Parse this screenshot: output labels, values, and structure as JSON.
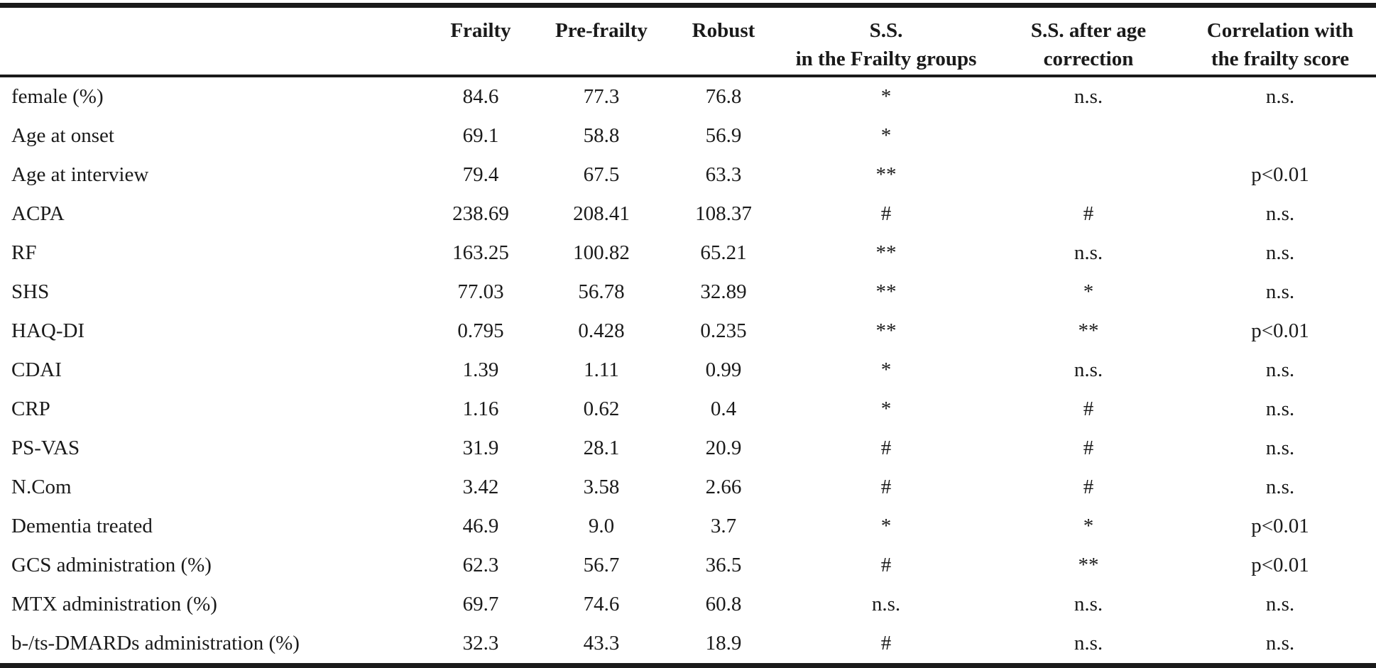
{
  "table": {
    "headers": {
      "frailty": "Frailty",
      "pre_frailty": "Pre-frailty",
      "robust": "Robust",
      "ss_line1": "S.S.",
      "ss_line2": "in the Frailty groups",
      "ss_age_line1": "S.S. after age",
      "ss_age_line2": "correction",
      "corr_line1": "Correlation with",
      "corr_line2": "the frailty score"
    },
    "rows": [
      {
        "label": "female (%)",
        "frailty": "84.6",
        "pre": "77.3",
        "robust": "76.8",
        "ss": "*",
        "ss_age": "n.s.",
        "corr": "n.s."
      },
      {
        "label": "Age at onset",
        "frailty": "69.1",
        "pre": "58.8",
        "robust": "56.9",
        "ss": "*",
        "ss_age": "",
        "corr": ""
      },
      {
        "label": "Age at interview",
        "frailty": "79.4",
        "pre": "67.5",
        "robust": "63.3",
        "ss": "**",
        "ss_age": "",
        "corr": "p<0.01"
      },
      {
        "label": "ACPA",
        "frailty": "238.69",
        "pre": "208.41",
        "robust": "108.37",
        "ss": "#",
        "ss_age": "#",
        "corr": "n.s."
      },
      {
        "label": "RF",
        "frailty": "163.25",
        "pre": "100.82",
        "robust": "65.21",
        "ss": "**",
        "ss_age": "n.s.",
        "corr": "n.s."
      },
      {
        "label": "SHS",
        "frailty": "77.03",
        "pre": "56.78",
        "robust": "32.89",
        "ss": "**",
        "ss_age": "*",
        "corr": "n.s."
      },
      {
        "label": "HAQ-DI",
        "frailty": "0.795",
        "pre": "0.428",
        "robust": "0.235",
        "ss": "**",
        "ss_age": "**",
        "corr": "p<0.01"
      },
      {
        "label": "CDAI",
        "frailty": "1.39",
        "pre": "1.11",
        "robust": "0.99",
        "ss": "*",
        "ss_age": "n.s.",
        "corr": "n.s."
      },
      {
        "label": "CRP",
        "frailty": "1.16",
        "pre": "0.62",
        "robust": "0.4",
        "ss": "*",
        "ss_age": "#",
        "corr": "n.s."
      },
      {
        "label": "PS-VAS",
        "frailty": "31.9",
        "pre": "28.1",
        "robust": "20.9",
        "ss": "#",
        "ss_age": "#",
        "corr": "n.s."
      },
      {
        "label": "N.Com",
        "frailty": "3.42",
        "pre": "3.58",
        "robust": "2.66",
        "ss": "#",
        "ss_age": "#",
        "corr": "n.s."
      },
      {
        "label": "Dementia treated",
        "frailty": "46.9",
        "pre": "9.0",
        "robust": "3.7",
        "ss": "*",
        "ss_age": "*",
        "corr": "p<0.01"
      },
      {
        "label": "GCS administration (%)",
        "frailty": "62.3",
        "pre": "56.7",
        "robust": "36.5",
        "ss": "#",
        "ss_age": "**",
        "corr": "p<0.01"
      },
      {
        "label": "MTX administration (%)",
        "frailty": "69.7",
        "pre": "74.6",
        "robust": "60.8",
        "ss": "n.s.",
        "ss_age": "n.s.",
        "corr": "n.s."
      },
      {
        "label": "b-/ts-DMARDs administration (%)",
        "frailty": "32.3",
        "pre": "43.3",
        "robust": "18.9",
        "ss": "#",
        "ss_age": "n.s.",
        "corr": "n.s."
      }
    ]
  }
}
